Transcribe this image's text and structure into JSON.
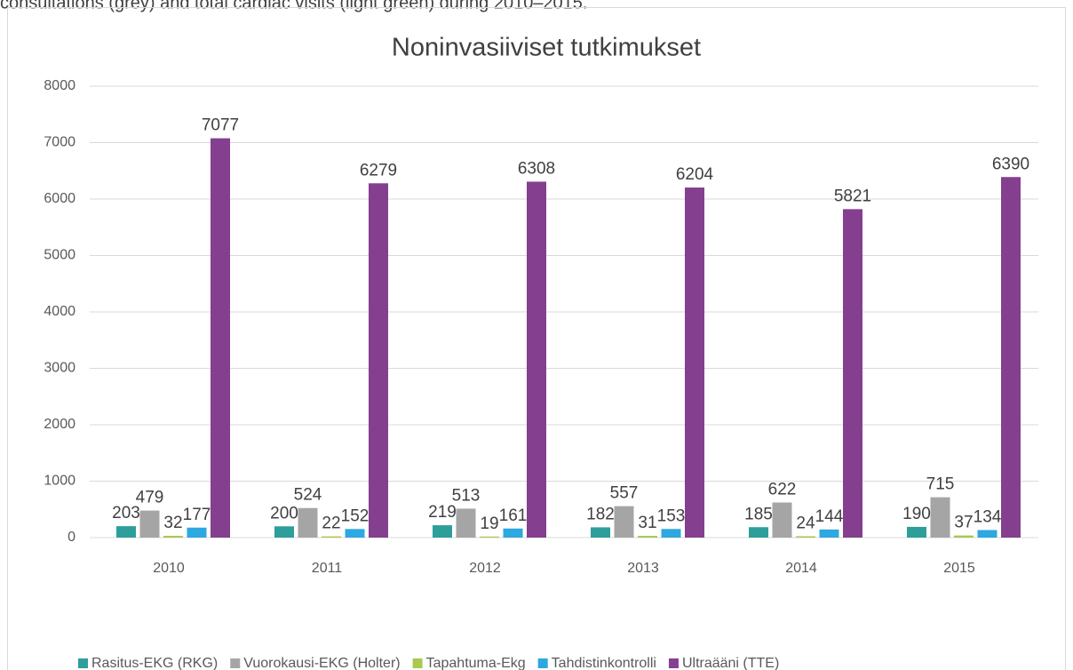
{
  "caption": "consultations (grey) and total cardiac visits (light green) during 2010–2015.",
  "chart_data": {
    "type": "bar",
    "title": "Noninvasiiviset tutkimukset",
    "categories": [
      "2010",
      "2011",
      "2012",
      "2013",
      "2014",
      "2015"
    ],
    "series": [
      {
        "name": "Rasitus-EKG (RKG)",
        "color": "#2e9e9b",
        "values": [
          203,
          200,
          219,
          182,
          185,
          190
        ]
      },
      {
        "name": "Vuorokausi-EKG (Holter)",
        "color": "#a5a5a5",
        "values": [
          479,
          524,
          513,
          557,
          622,
          715
        ]
      },
      {
        "name": "Tapahtuma-Ekg",
        "color": "#a9c84e",
        "values": [
          32,
          22,
          19,
          31,
          24,
          37
        ]
      },
      {
        "name": "Tahdistinkontrolli",
        "color": "#2ea8e0",
        "values": [
          177,
          152,
          161,
          153,
          144,
          134
        ]
      },
      {
        "name": "Ultraääni (TTE)",
        "color": "#843f8f",
        "values": [
          7077,
          6279,
          6308,
          6204,
          5821,
          6390
        ]
      }
    ],
    "ylim": [
      0,
      8000
    ],
    "yticks": [
      0,
      1000,
      2000,
      3000,
      4000,
      5000,
      6000,
      7000,
      8000
    ],
    "grid": true,
    "legend": "bottom"
  }
}
